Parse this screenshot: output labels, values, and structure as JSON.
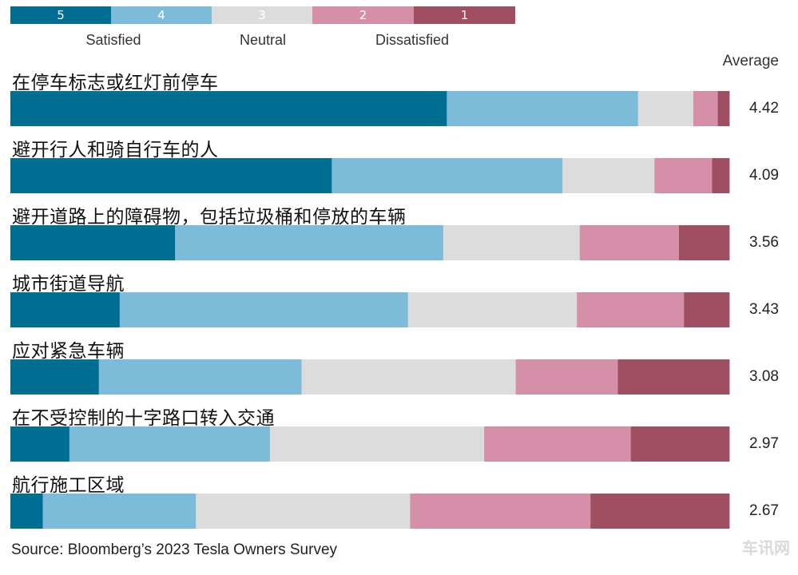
{
  "chart_data": {
    "type": "bar",
    "orientation": "horizontal",
    "stacked": true,
    "normalized": true,
    "legend": {
      "placement": "top-left",
      "scale": [
        {
          "code": "5",
          "color": "#006d92"
        },
        {
          "code": "4",
          "color": "#7dbcd9"
        },
        {
          "code": "3",
          "color": "#dcdcdc"
        },
        {
          "code": "2",
          "color": "#d58fa8"
        },
        {
          "code": "1",
          "color": "#a04e62"
        }
      ],
      "groups": {
        "satisfied": "Satisfied",
        "neutral": "Neutral",
        "dissatisfied": "Dissatisfied"
      }
    },
    "average_header": "Average",
    "categories": [
      "在停车标志或红灯前停车",
      "避开行人和骑自行车的人",
      "避开道路上的障碍物，包括垃圾桶和停放的车辆",
      "城市街道导航",
      "应对紧急车辆",
      "在不受控制的十字路口转入交通",
      "航行施工区域"
    ],
    "averages": [
      "4.42",
      "4.09",
      "3.56",
      "3.43",
      "3.08",
      "2.97",
      "2.67"
    ],
    "series": [
      {
        "name": "5",
        "values": [
          60.7,
          44.7,
          22.9,
          15.2,
          12.3,
          8.2,
          4.5
        ]
      },
      {
        "name": "4",
        "values": [
          26.6,
          32.1,
          37.3,
          40.1,
          28.2,
          27.9,
          21.3
        ]
      },
      {
        "name": "3",
        "values": [
          7.7,
          12.8,
          19.0,
          23.5,
          29.8,
          29.8,
          29.8
        ]
      },
      {
        "name": "2",
        "values": [
          3.4,
          8.0,
          13.8,
          14.9,
          14.2,
          20.4,
          25.1
        ]
      },
      {
        "name": "1",
        "values": [
          1.6,
          2.4,
          7.0,
          6.3,
          15.5,
          13.7,
          19.3
        ]
      }
    ],
    "xlim": [
      0,
      100
    ],
    "grid": false
  },
  "footer": {
    "source": "Source: Bloomberg’s 2023 Tesla Owners Survey"
  },
  "watermark": "车讯网"
}
